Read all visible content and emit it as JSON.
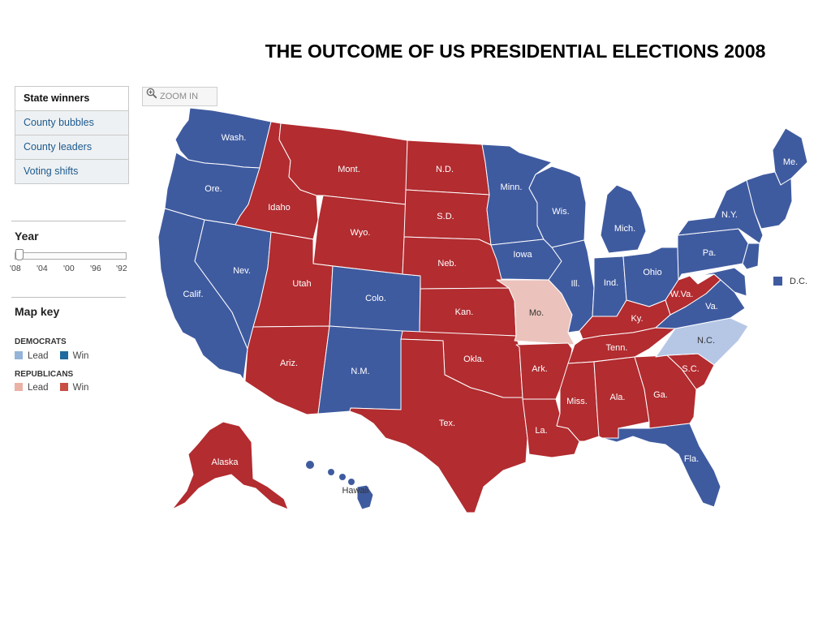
{
  "title": "THE OUTCOME OF US PRESIDENTIAL ELECTIONS 2008",
  "tabs": [
    {
      "label": "State winners",
      "active": true
    },
    {
      "label": "County bubbles",
      "active": false
    },
    {
      "label": "County leaders",
      "active": false
    },
    {
      "label": "Voting shifts",
      "active": false
    }
  ],
  "zoom": {
    "label": "ZOOM IN",
    "icon": "magnifier-plus-icon"
  },
  "year": {
    "heading": "Year",
    "ticks": [
      "'08",
      "'04",
      "'00",
      "'96",
      "'92"
    ],
    "selected": "'08"
  },
  "map_key": {
    "heading": "Map key",
    "democrats": {
      "label": "DEMOCRATS",
      "lead": "Lead",
      "win": "Win"
    },
    "republicans": {
      "label": "REPUBLICANS",
      "lead": "Lead",
      "win": "Win"
    }
  },
  "colors": {
    "dem_win": "#3f5ba0",
    "dem_lead": "#b6c7e6",
    "rep_win": "#b22c30",
    "rep_lead": "#ebc3bc",
    "key_dem_lead": "#94b4d9",
    "key_dem_win": "#1f6b9e",
    "key_rep_lead": "#eab1a7",
    "key_rep_win": "#c84e46"
  },
  "states": [
    {
      "name": "Wash.",
      "result": "dem_win"
    },
    {
      "name": "Ore.",
      "result": "dem_win"
    },
    {
      "name": "Calif.",
      "result": "dem_win"
    },
    {
      "name": "Nev.",
      "result": "dem_win"
    },
    {
      "name": "Idaho",
      "result": "rep_win"
    },
    {
      "name": "Mont.",
      "result": "rep_win"
    },
    {
      "name": "Wyo.",
      "result": "rep_win"
    },
    {
      "name": "Utah",
      "result": "rep_win"
    },
    {
      "name": "Colo.",
      "result": "dem_win"
    },
    {
      "name": "Ariz.",
      "result": "rep_win"
    },
    {
      "name": "N.M.",
      "result": "dem_win"
    },
    {
      "name": "N.D.",
      "result": "rep_win"
    },
    {
      "name": "S.D.",
      "result": "rep_win"
    },
    {
      "name": "Neb.",
      "result": "rep_win"
    },
    {
      "name": "Kan.",
      "result": "rep_win"
    },
    {
      "name": "Okla.",
      "result": "rep_win"
    },
    {
      "name": "Tex.",
      "result": "rep_win"
    },
    {
      "name": "Minn.",
      "result": "dem_win"
    },
    {
      "name": "Iowa",
      "result": "dem_win"
    },
    {
      "name": "Mo.",
      "result": "rep_lead"
    },
    {
      "name": "Ark.",
      "result": "rep_win"
    },
    {
      "name": "La.",
      "result": "rep_win"
    },
    {
      "name": "Wis.",
      "result": "dem_win"
    },
    {
      "name": "Ill.",
      "result": "dem_win"
    },
    {
      "name": "Mich.",
      "result": "dem_win"
    },
    {
      "name": "Ind.",
      "result": "dem_win"
    },
    {
      "name": "Ohio",
      "result": "dem_win"
    },
    {
      "name": "Ky.",
      "result": "rep_win"
    },
    {
      "name": "Tenn.",
      "result": "rep_win"
    },
    {
      "name": "Miss.",
      "result": "rep_win"
    },
    {
      "name": "Ala.",
      "result": "rep_win"
    },
    {
      "name": "Ga.",
      "result": "rep_win"
    },
    {
      "name": "Fla.",
      "result": "dem_win"
    },
    {
      "name": "S.C.",
      "result": "rep_win"
    },
    {
      "name": "N.C.",
      "result": "dem_lead"
    },
    {
      "name": "Va.",
      "result": "dem_win"
    },
    {
      "name": "W.Va.",
      "result": "rep_win"
    },
    {
      "name": "Pa.",
      "result": "dem_win"
    },
    {
      "name": "N.Y.",
      "result": "dem_win"
    },
    {
      "name": "Me.",
      "result": "dem_win"
    },
    {
      "name": "D.C.",
      "result": "dem_win"
    },
    {
      "name": "Alaska",
      "result": "rep_win"
    },
    {
      "name": "Hawaii",
      "result": "dem_win"
    }
  ]
}
